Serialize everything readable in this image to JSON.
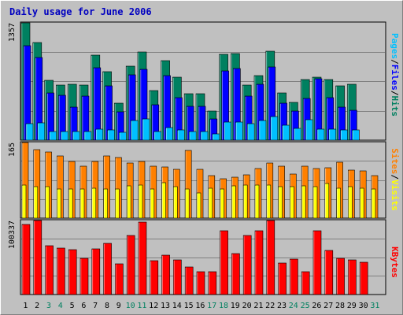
{
  "title": "Daily usage for June 2006",
  "chart_data": [
    {
      "type": "bar",
      "ymax_label": "1357",
      "ylim": [
        0,
        1357
      ],
      "legend": [
        "Pages",
        "/",
        "Files",
        "/",
        "Hits"
      ],
      "legend_colors": [
        "#00c0ff",
        "#000000",
        "#0000ff",
        "#000000",
        "#008060"
      ],
      "categories": [
        "1",
        "2",
        "3",
        "4",
        "5",
        "6",
        "7",
        "8",
        "9",
        "10",
        "11",
        "12",
        "13",
        "14",
        "15",
        "16",
        "17",
        "18",
        "19",
        "20",
        "21",
        "22",
        "23",
        "24",
        "25",
        "26",
        "27",
        "28",
        "29",
        "30",
        "31"
      ],
      "series": [
        {
          "name": "Hits",
          "color": "#008060",
          "values": [
            1357,
            1130,
            690,
            640,
            650,
            640,
            980,
            790,
            430,
            860,
            1020,
            570,
            920,
            730,
            540,
            540,
            340,
            990,
            1000,
            640,
            750,
            1030,
            550,
            440,
            700,
            730,
            700,
            630,
            650,
            0,
            0
          ]
        },
        {
          "name": "Files",
          "color": "#0000ff",
          "values": [
            1090,
            960,
            550,
            520,
            380,
            510,
            840,
            630,
            330,
            760,
            820,
            410,
            750,
            490,
            390,
            390,
            250,
            800,
            830,
            510,
            650,
            850,
            430,
            340,
            480,
            710,
            490,
            380,
            350,
            0,
            0
          ]
        },
        {
          "name": "Pages",
          "color": "#00c0ff",
          "values": [
            190,
            200,
            100,
            100,
            100,
            100,
            130,
            120,
            90,
            230,
            250,
            100,
            150,
            120,
            100,
            100,
            70,
            210,
            210,
            190,
            230,
            270,
            170,
            140,
            240,
            130,
            130,
            120,
            120,
            0,
            0
          ]
        }
      ]
    },
    {
      "type": "bar",
      "ymax_label": "165",
      "ylim": [
        0,
        165
      ],
      "legend": [
        "Sites",
        "/",
        "Visits"
      ],
      "legend_colors": [
        "#ff8000",
        "#000000",
        "#ffff00"
      ],
      "categories": [
        "1",
        "2",
        "3",
        "4",
        "5",
        "6",
        "7",
        "8",
        "9",
        "10",
        "11",
        "12",
        "13",
        "14",
        "15",
        "16",
        "17",
        "18",
        "19",
        "20",
        "21",
        "22",
        "23",
        "24",
        "25",
        "26",
        "27",
        "28",
        "29",
        "30",
        "31"
      ],
      "series": [
        {
          "name": "Sites",
          "color": "#ff8000",
          "values": [
            165,
            150,
            145,
            135,
            123,
            113,
            124,
            136,
            132,
            121,
            123,
            113,
            112,
            107,
            148,
            106,
            93,
            86,
            89,
            94,
            109,
            120,
            113,
            97,
            113,
            109,
            110,
            122,
            104,
            103,
            92
          ]
        },
        {
          "name": "Visits",
          "color": "#ffff00",
          "values": [
            73,
            68,
            68,
            64,
            64,
            63,
            65,
            64,
            64,
            70,
            72,
            64,
            78,
            68,
            64,
            55,
            66,
            63,
            71,
            73,
            72,
            73,
            68,
            68,
            70,
            69,
            75,
            65,
            68,
            66,
            64
          ]
        }
      ]
    },
    {
      "type": "bar",
      "ymax_label": "100337",
      "ylim": [
        0,
        100337
      ],
      "legend": [
        "KBytes"
      ],
      "legend_colors": [
        "#ff0000"
      ],
      "categories": [
        "1",
        "2",
        "3",
        "4",
        "5",
        "6",
        "7",
        "8",
        "9",
        "10",
        "11",
        "12",
        "13",
        "14",
        "15",
        "16",
        "17",
        "18",
        "19",
        "20",
        "21",
        "22",
        "23",
        "24",
        "25",
        "26",
        "27",
        "28",
        "29",
        "30",
        "31"
      ],
      "series": [
        {
          "name": "KBytes",
          "color": "#ff0000",
          "values": [
            95000,
            100337,
            66000,
            63000,
            61000,
            49000,
            62000,
            69000,
            42000,
            80000,
            98000,
            46000,
            53000,
            47000,
            37000,
            31000,
            31000,
            86000,
            55000,
            80000,
            86000,
            100337,
            43000,
            48000,
            31000,
            86000,
            60000,
            49000,
            47000,
            44000,
            0
          ]
        }
      ]
    }
  ],
  "x_labels": [
    {
      "text": "1",
      "color": "#000000"
    },
    {
      "text": "2",
      "color": "#000000"
    },
    {
      "text": "3",
      "color": "#008060"
    },
    {
      "text": "4",
      "color": "#008060"
    },
    {
      "text": "5",
      "color": "#000000"
    },
    {
      "text": "6",
      "color": "#000000"
    },
    {
      "text": "7",
      "color": "#000000"
    },
    {
      "text": "8",
      "color": "#000000"
    },
    {
      "text": "9",
      "color": "#000000"
    },
    {
      "text": "10",
      "color": "#008060"
    },
    {
      "text": "11",
      "color": "#008060"
    },
    {
      "text": "12",
      "color": "#000000"
    },
    {
      "text": "13",
      "color": "#000000"
    },
    {
      "text": "14",
      "color": "#000000"
    },
    {
      "text": "15",
      "color": "#000000"
    },
    {
      "text": "16",
      "color": "#000000"
    },
    {
      "text": "17",
      "color": "#008060"
    },
    {
      "text": "18",
      "color": "#008060"
    },
    {
      "text": "19",
      "color": "#000000"
    },
    {
      "text": "20",
      "color": "#000000"
    },
    {
      "text": "21",
      "color": "#000000"
    },
    {
      "text": "22",
      "color": "#000000"
    },
    {
      "text": "23",
      "color": "#000000"
    },
    {
      "text": "24",
      "color": "#008060"
    },
    {
      "text": "25",
      "color": "#008060"
    },
    {
      "text": "26",
      "color": "#000000"
    },
    {
      "text": "27",
      "color": "#000000"
    },
    {
      "text": "28",
      "color": "#000000"
    },
    {
      "text": "29",
      "color": "#000000"
    },
    {
      "text": "30",
      "color": "#000000"
    },
    {
      "text": "31",
      "color": "#008060"
    }
  ]
}
